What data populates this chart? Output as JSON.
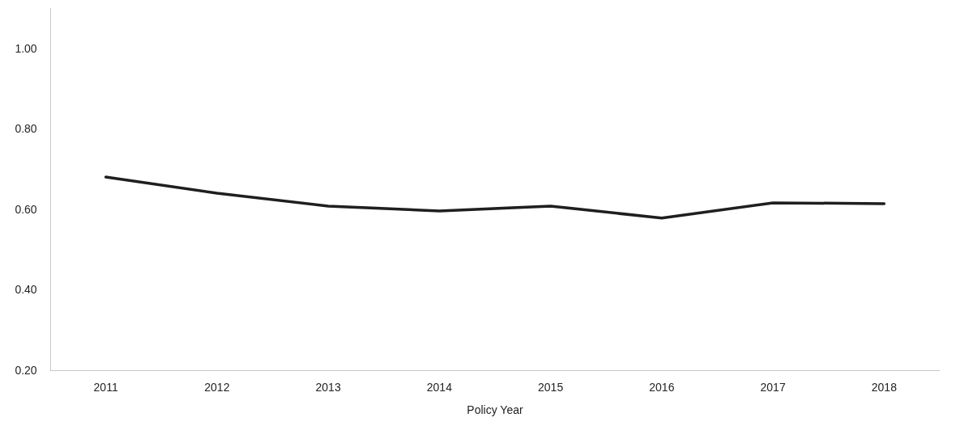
{
  "chart_data": {
    "type": "line",
    "xlabel": "Policy Year",
    "categories": [
      "2011",
      "2012",
      "2013",
      "2014",
      "2015",
      "2016",
      "2017",
      "2018"
    ],
    "series": [
      {
        "color": "#1f1f1f",
        "values": [
          0.68,
          0.64,
          0.608,
          0.596,
          0.608,
          0.578,
          0.616,
          0.614
        ]
      }
    ],
    "ylim": [
      0.2,
      1.1
    ],
    "yticks": [
      {
        "value": 0.2,
        "label": "0.20"
      },
      {
        "value": 0.4,
        "label": "0.40"
      },
      {
        "value": 0.6,
        "label": "0.60"
      },
      {
        "value": 0.8,
        "label": "0.80"
      },
      {
        "value": 1.0,
        "label": "1.00"
      }
    ],
    "grid": false,
    "marker": "none",
    "line_style": "solid"
  }
}
